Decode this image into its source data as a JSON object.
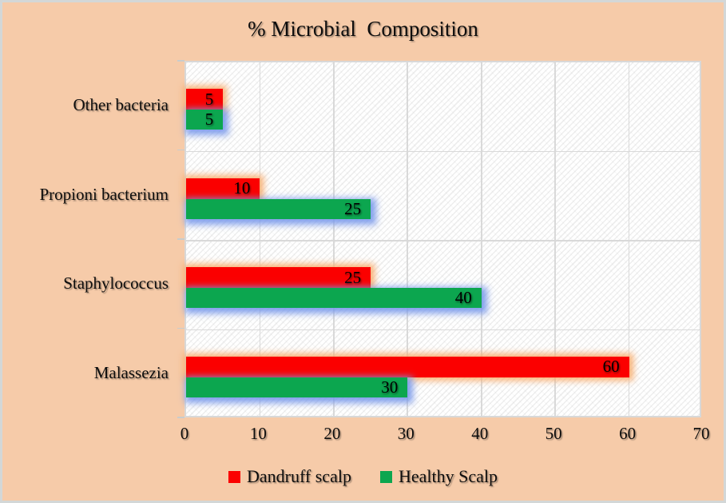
{
  "title": "% Microbial  Composition",
  "chart_data": {
    "type": "bar",
    "orientation": "horizontal",
    "title": "% Microbial  Composition",
    "categories": [
      "Other bacteria",
      "Propioni bacterium",
      "Staphylococcus",
      "Malassezia"
    ],
    "series": [
      {
        "name": "Dandruff scalp",
        "color": "#fb0000",
        "glow_color": "#f9ad6e",
        "values": [
          5,
          10,
          25,
          60
        ]
      },
      {
        "name": "Healthy Scalp",
        "color": "#0ca64f",
        "glow_color": "#7898eb",
        "values": [
          5,
          25,
          40,
          30
        ]
      }
    ],
    "xlim": [
      0,
      70
    ],
    "x_ticks": [
      0,
      10,
      20,
      30,
      40,
      50,
      60,
      70
    ],
    "grid": true,
    "data_labels": true,
    "legend_position": "bottom"
  },
  "colors": {
    "background": "#f6cba9",
    "frame_border": "#d3d7d7",
    "plot_fill": "#ffffff",
    "gridline": "#d9d9d9",
    "text": "#0d0d0d"
  }
}
